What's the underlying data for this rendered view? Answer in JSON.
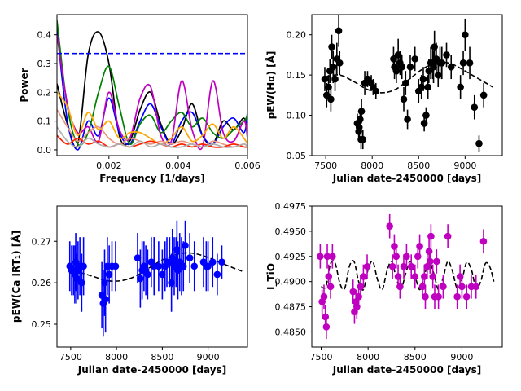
{
  "chart_data": [
    {
      "id": "periodogram",
      "type": "line",
      "xlabel": "Frequency [1/days]",
      "ylabel": "Power",
      "xlim": [
        0.0005,
        0.006
      ],
      "ylim": [
        -0.02,
        0.47
      ],
      "xticks": [
        0.002,
        0.004,
        0.006
      ],
      "xtick_labels": [
        "0.002",
        "0.004",
        "0.006"
      ],
      "yticks": [
        0.0,
        0.1,
        0.2,
        0.3,
        0.4
      ],
      "ytick_labels": [
        "0.0",
        "0.1",
        "0.2",
        "0.3",
        "0.4"
      ],
      "threshold": {
        "y": 0.335,
        "color": "#0000ff",
        "style": "dashed"
      },
      "series": [
        {
          "name": "black",
          "color": "#000000",
          "x": [
            0.0005,
            0.0008,
            0.0011,
            0.0014,
            0.0017,
            0.002,
            0.0023,
            0.0026,
            0.0029,
            0.0032,
            0.0035,
            0.0038,
            0.0041,
            0.0044,
            0.0047,
            0.005,
            0.0053,
            0.0056,
            0.0059,
            0.006
          ],
          "y": [
            0.23,
            0.09,
            0.02,
            0.33,
            0.41,
            0.3,
            0.05,
            0.03,
            0.14,
            0.2,
            0.09,
            0.02,
            0.07,
            0.16,
            0.05,
            0.02,
            0.1,
            0.07,
            0.11,
            0.05
          ]
        },
        {
          "name": "blue",
          "color": "#0000ff",
          "x": [
            0.0005,
            0.0008,
            0.0011,
            0.0014,
            0.0017,
            0.002,
            0.0023,
            0.0026,
            0.0029,
            0.0032,
            0.0035,
            0.0038,
            0.0041,
            0.0044,
            0.0047,
            0.005,
            0.0053,
            0.0056,
            0.0059,
            0.006
          ],
          "y": [
            0.42,
            0.1,
            0.0,
            0.1,
            0.05,
            0.18,
            0.06,
            0.02,
            0.1,
            0.16,
            0.08,
            0.02,
            0.1,
            0.13,
            0.05,
            0.02,
            0.08,
            0.11,
            0.06,
            0.13
          ]
        },
        {
          "name": "green",
          "color": "#008000",
          "x": [
            0.0005,
            0.0008,
            0.0011,
            0.0014,
            0.0017,
            0.002,
            0.0023,
            0.0026,
            0.0029,
            0.0032,
            0.0035,
            0.0038,
            0.0041,
            0.0044,
            0.0047,
            0.005,
            0.0053,
            0.0056,
            0.0059,
            0.006
          ],
          "y": [
            0.45,
            0.15,
            0.02,
            0.06,
            0.2,
            0.29,
            0.15,
            0.02,
            0.09,
            0.12,
            0.06,
            0.1,
            0.13,
            0.08,
            0.11,
            0.06,
            0.04,
            0.07,
            0.1,
            0.12
          ]
        },
        {
          "name": "magenta",
          "color": "#c000c0",
          "x": [
            0.0005,
            0.0008,
            0.0011,
            0.0014,
            0.0017,
            0.002,
            0.0023,
            0.0026,
            0.0029,
            0.0032,
            0.0035,
            0.0038,
            0.0041,
            0.0044,
            0.0047,
            0.005,
            0.0053,
            0.0056,
            0.0059,
            0.006
          ],
          "y": [
            0.4,
            0.16,
            0.06,
            0.08,
            0.03,
            0.2,
            0.07,
            0.04,
            0.18,
            0.22,
            0.05,
            0.03,
            0.24,
            0.07,
            0.01,
            0.24,
            0.06,
            0.03,
            0.1,
            0.04
          ]
        },
        {
          "name": "orange",
          "color": "#ffa500",
          "x": [
            0.0005,
            0.0008,
            0.0011,
            0.0014,
            0.0017,
            0.002,
            0.0023,
            0.0026,
            0.0029,
            0.0032,
            0.0035,
            0.0038,
            0.0041,
            0.0044,
            0.0047,
            0.005,
            0.0053,
            0.0056,
            0.0059,
            0.006
          ],
          "y": [
            0.2,
            0.15,
            0.05,
            0.13,
            0.07,
            0.1,
            0.04,
            0.06,
            0.06,
            0.04,
            0.02,
            0.04,
            0.08,
            0.03,
            0.05,
            0.09,
            0.04,
            0.08,
            0.04,
            0.02
          ]
        },
        {
          "name": "coral",
          "color": "#e9967a",
          "x": [
            0.0005,
            0.0008,
            0.0011,
            0.0014,
            0.0017,
            0.002,
            0.0023,
            0.0026,
            0.0029,
            0.0032,
            0.0035,
            0.0038,
            0.0041,
            0.0044,
            0.0047,
            0.005,
            0.0053,
            0.0056,
            0.0059,
            0.006
          ],
          "y": [
            0.14,
            0.08,
            0.03,
            0.06,
            0.08,
            0.04,
            0.02,
            0.04,
            0.03,
            0.02,
            0.03,
            0.02,
            0.03,
            0.02,
            0.01,
            0.03,
            0.02,
            0.01,
            0.02,
            0.01
          ]
        },
        {
          "name": "red",
          "color": "#ff2000",
          "x": [
            0.0005,
            0.0008,
            0.0011,
            0.0014,
            0.0017,
            0.002,
            0.0023,
            0.0026,
            0.0029,
            0.0032,
            0.0035,
            0.0038,
            0.0041,
            0.0044,
            0.0047,
            0.005,
            0.0053,
            0.0056,
            0.0059,
            0.006
          ],
          "y": [
            0.05,
            0.02,
            0.04,
            0.02,
            0.03,
            0.01,
            0.02,
            0.01,
            0.02,
            0.03,
            0.02,
            0.01,
            0.02,
            0.01,
            0.02,
            0.01,
            0.01,
            0.02,
            0.01,
            0.01
          ]
        },
        {
          "name": "gray",
          "color": "#b0b0b0",
          "x": [
            0.0005,
            0.0008,
            0.0011,
            0.0014,
            0.0017,
            0.002,
            0.0023,
            0.0026,
            0.0029,
            0.0032,
            0.0035,
            0.0038,
            0.0041,
            0.0044,
            0.0047,
            0.005,
            0.0053,
            0.0056,
            0.0059,
            0.006
          ],
          "y": [
            0.08,
            0.03,
            0.01,
            0.04,
            0.02,
            0.01,
            0.02,
            0.01,
            0.03,
            0.01,
            0.02,
            0.01,
            0.01,
            0.02,
            0.01,
            0.02,
            0.01,
            0.01,
            0.02,
            0.01
          ]
        }
      ]
    },
    {
      "id": "halpha",
      "type": "scatter",
      "xlabel": "Julian date-2450000 [days]",
      "ylabel": "pEW(Hα) [Å]",
      "xlim": [
        7350,
        9400
      ],
      "ylim": [
        0.05,
        0.225
      ],
      "xticks": [
        7500,
        8000,
        8500,
        9000
      ],
      "xtick_labels": [
        "7500",
        "8000",
        "8500",
        "9000"
      ],
      "yticks": [
        0.05,
        0.1,
        0.15,
        0.2
      ],
      "ytick_labels": [
        "0.05",
        "0.10",
        "0.15",
        "0.20"
      ],
      "color": "#000000",
      "x": [
        7490,
        7510,
        7530,
        7545,
        7555,
        7565,
        7580,
        7600,
        7620,
        7640,
        7650,
        7840,
        7855,
        7860,
        7870,
        7880,
        7885,
        7900,
        7920,
        7950,
        7990,
        8010,
        8040,
        8230,
        8240,
        8260,
        8280,
        8300,
        8320,
        8340,
        8360,
        8380,
        8410,
        8460,
        8500,
        8530,
        8550,
        8560,
        8580,
        8600,
        8610,
        8630,
        8650,
        8660,
        8670,
        8690,
        8710,
        8730,
        8750,
        8800,
        8850,
        8950,
        8980,
        9000,
        9050,
        9100,
        9150,
        9200
      ],
      "y": [
        0.145,
        0.125,
        0.135,
        0.155,
        0.12,
        0.185,
        0.16,
        0.145,
        0.17,
        0.205,
        0.165,
        0.09,
        0.08,
        0.085,
        0.095,
        0.07,
        0.105,
        0.07,
        0.14,
        0.145,
        0.14,
        0.135,
        0.13,
        0.17,
        0.16,
        0.155,
        0.175,
        0.165,
        0.16,
        0.12,
        0.14,
        0.095,
        0.16,
        0.17,
        0.13,
        0.135,
        0.145,
        0.09,
        0.1,
        0.135,
        0.155,
        0.165,
        0.165,
        0.16,
        0.185,
        0.17,
        0.15,
        0.165,
        0.165,
        0.175,
        0.16,
        0.135,
        0.165,
        0.2,
        0.165,
        0.11,
        0.065,
        0.125
      ],
      "err": [
        0.015,
        0.015,
        0.015,
        0.015,
        0.015,
        0.015,
        0.02,
        0.015,
        0.02,
        0.02,
        0.015,
        0.012,
        0.012,
        0.012,
        0.012,
        0.012,
        0.015,
        0.012,
        0.015,
        0.01,
        0.01,
        0.01,
        0.01,
        0.015,
        0.015,
        0.015,
        0.02,
        0.015,
        0.015,
        0.015,
        0.015,
        0.012,
        0.015,
        0.015,
        0.015,
        0.015,
        0.015,
        0.01,
        0.01,
        0.015,
        0.015,
        0.02,
        0.02,
        0.02,
        0.02,
        0.02,
        0.015,
        0.02,
        0.02,
        0.015,
        0.015,
        0.015,
        0.015,
        0.02,
        0.02,
        0.015,
        0.01,
        0.015
      ],
      "fit": {
        "color": "#000000",
        "style": "dashed",
        "x": [
          7500,
          7650,
          7800,
          7950,
          8100,
          8250,
          8400,
          8550,
          8700,
          8850,
          9000,
          9150,
          9300
        ],
        "y": [
          0.148,
          0.15,
          0.142,
          0.132,
          0.128,
          0.132,
          0.145,
          0.158,
          0.166,
          0.164,
          0.155,
          0.145,
          0.135
        ]
      }
    },
    {
      "id": "cairt",
      "type": "scatter",
      "xlabel": "Julian date-2450000 [days]",
      "ylabel": "pEW(Ca IRT₁) [Å]",
      "xlim": [
        7350,
        9430
      ],
      "ylim": [
        0.2445,
        0.2785
      ],
      "xticks": [
        7500,
        8000,
        8500,
        9000
      ],
      "xtick_labels": [
        "7500",
        "8000",
        "8500",
        "9000"
      ],
      "yticks": [
        0.25,
        0.26,
        0.27
      ],
      "ytick_labels": [
        "0.25",
        "0.26",
        "0.27"
      ],
      "color": "#0000ff",
      "x": [
        7490,
        7510,
        7530,
        7545,
        7555,
        7565,
        7580,
        7600,
        7620,
        7640,
        7840,
        7855,
        7870,
        7880,
        7900,
        7920,
        7950,
        7990,
        8230,
        8260,
        8280,
        8300,
        8320,
        8340,
        8380,
        8410,
        8460,
        8500,
        8530,
        8550,
        8580,
        8600,
        8610,
        8630,
        8650,
        8660,
        8670,
        8690,
        8710,
        8730,
        8750,
        8800,
        8850,
        8950,
        8980,
        9000,
        9050,
        9100,
        9150
      ],
      "y": [
        0.264,
        0.263,
        0.263,
        0.262,
        0.265,
        0.261,
        0.263,
        0.264,
        0.26,
        0.264,
        0.257,
        0.255,
        0.26,
        0.256,
        0.264,
        0.262,
        0.264,
        0.264,
        0.266,
        0.261,
        0.263,
        0.264,
        0.263,
        0.262,
        0.265,
        0.264,
        0.264,
        0.262,
        0.264,
        0.265,
        0.265,
        0.26,
        0.266,
        0.264,
        0.265,
        0.268,
        0.263,
        0.265,
        0.264,
        0.264,
        0.269,
        0.266,
        0.264,
        0.265,
        0.264,
        0.264,
        0.265,
        0.262,
        0.265
      ],
      "err": [
        0.006,
        0.006,
        0.006,
        0.007,
        0.007,
        0.006,
        0.007,
        0.007,
        0.007,
        0.007,
        0.008,
        0.008,
        0.008,
        0.008,
        0.007,
        0.007,
        0.006,
        0.006,
        0.006,
        0.007,
        0.007,
        0.006,
        0.006,
        0.006,
        0.006,
        0.007,
        0.006,
        0.006,
        0.006,
        0.006,
        0.006,
        0.007,
        0.007,
        0.007,
        0.006,
        0.007,
        0.007,
        0.007,
        0.007,
        0.006,
        0.006,
        0.006,
        0.006,
        0.006,
        0.006,
        0.006,
        0.006,
        0.005,
        0.004
      ],
      "fit": {
        "color": "#000000",
        "style": "dashed",
        "x": [
          7600,
          7750,
          7900,
          8050,
          8200,
          8350,
          8500,
          8650,
          8800,
          8950,
          9100,
          9250,
          9370
        ],
        "y": [
          0.2625,
          0.2615,
          0.2605,
          0.2605,
          0.2615,
          0.2635,
          0.2655,
          0.2668,
          0.2672,
          0.2665,
          0.2652,
          0.2638,
          0.2628
        ]
      }
    },
    {
      "id": "ito",
      "type": "scatter",
      "xlabel": "Julian date-2450000 [days]",
      "ylabel": "I_TiO",
      "xlim": [
        7400,
        9430
      ],
      "ylim": [
        0.4835,
        0.4975
      ],
      "xticks": [
        7500,
        8000,
        8500,
        9000
      ],
      "xtick_labels": [
        "7500",
        "8000",
        "8500",
        "9000"
      ],
      "yticks": [
        0.485,
        0.4875,
        0.49,
        0.4925,
        0.495,
        0.4975
      ],
      "ytick_labels": [
        "0.4850",
        "0.4875",
        "0.4900",
        "0.4925",
        "0.4950",
        "0.4975"
      ],
      "color": "#c000c0",
      "x": [
        7490,
        7510,
        7530,
        7545,
        7555,
        7565,
        7580,
        7600,
        7620,
        7840,
        7855,
        7870,
        7880,
        7900,
        7920,
        7950,
        7990,
        8230,
        8260,
        8280,
        8300,
        8320,
        8340,
        8380,
        8410,
        8460,
        8500,
        8530,
        8550,
        8580,
        8600,
        8610,
        8630,
        8650,
        8660,
        8670,
        8690,
        8710,
        8730,
        8750,
        8800,
        8850,
        8950,
        8980,
        9000,
        9050,
        9100,
        9150,
        9230
      ],
      "y": [
        0.4925,
        0.488,
        0.4885,
        0.4865,
        0.4855,
        0.4925,
        0.4905,
        0.4895,
        0.4925,
        0.489,
        0.487,
        0.488,
        0.4875,
        0.4885,
        0.4895,
        0.4905,
        0.4915,
        0.4955,
        0.4915,
        0.4935,
        0.4925,
        0.4905,
        0.4895,
        0.4915,
        0.4925,
        0.4915,
        0.4905,
        0.4925,
        0.4935,
        0.4895,
        0.4905,
        0.4885,
        0.4915,
        0.493,
        0.492,
        0.4945,
        0.4905,
        0.4885,
        0.492,
        0.4885,
        0.4895,
        0.4945,
        0.4885,
        0.4905,
        0.4895,
        0.4885,
        0.4895,
        0.4895,
        0.494
      ],
      "err": [
        0.0012,
        0.0012,
        0.0012,
        0.0012,
        0.0012,
        0.0012,
        0.0012,
        0.0012,
        0.0012,
        0.0012,
        0.0012,
        0.0012,
        0.0012,
        0.0012,
        0.0012,
        0.0012,
        0.0012,
        0.0012,
        0.0012,
        0.0012,
        0.0012,
        0.0012,
        0.0012,
        0.0012,
        0.0012,
        0.0012,
        0.0012,
        0.0012,
        0.0012,
        0.0012,
        0.0012,
        0.0012,
        0.0012,
        0.0012,
        0.0012,
        0.0012,
        0.0012,
        0.0012,
        0.0012,
        0.0012,
        0.0012,
        0.0012,
        0.0012,
        0.0012,
        0.0012,
        0.0012,
        0.0012,
        0.0012,
        0.0012
      ],
      "fit": {
        "color": "#000000",
        "style": "dashed",
        "x": [
          7500,
          7550,
          7600,
          7650,
          7700,
          7750,
          7800,
          7850,
          7900,
          7950,
          8000,
          8050,
          8100,
          8150,
          8200,
          8250,
          8300,
          8350,
          8400,
          8450,
          8500,
          8550,
          8600,
          8650,
          8700,
          8750,
          8800,
          8850,
          8900,
          8950,
          9000,
          9050,
          9100,
          9150,
          9200,
          9250,
          9300,
          9340
        ],
        "y": [
          0.4895,
          0.4895,
          0.4918,
          0.4918,
          0.4898,
          0.4893,
          0.4915,
          0.492,
          0.49,
          0.4892,
          0.4912,
          0.492,
          0.4902,
          0.4892,
          0.491,
          0.492,
          0.4904,
          0.4892,
          0.4908,
          0.492,
          0.4906,
          0.4892,
          0.4906,
          0.492,
          0.4908,
          0.4892,
          0.4904,
          0.492,
          0.491,
          0.4893,
          0.4902,
          0.4919,
          0.4912,
          0.4894,
          0.49,
          0.4918,
          0.4914,
          0.49
        ]
      }
    }
  ]
}
